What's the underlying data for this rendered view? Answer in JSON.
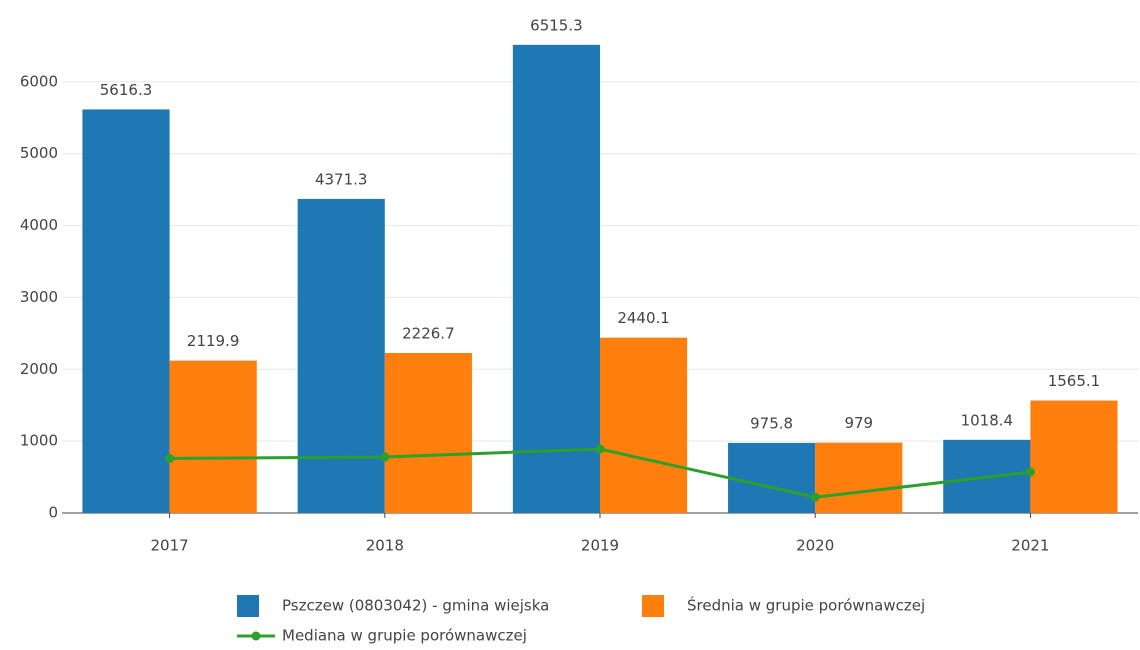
{
  "chart_data": {
    "type": "bar",
    "categories": [
      "2017",
      "2018",
      "2019",
      "2020",
      "2021"
    ],
    "series": [
      {
        "name": "Pszczew (0803042) - gmina wiejska",
        "color": "#1f77b4",
        "type": "bar",
        "values": [
          5616.3,
          4371.3,
          6515.3,
          975.8,
          1018.4
        ]
      },
      {
        "name": "Średnia w grupie porównawczej",
        "color": "#ff7f0e",
        "type": "bar",
        "values": [
          2119.9,
          2226.7,
          2440.1,
          979,
          1565.1
        ]
      },
      {
        "name": "Mediana w grupie porównawczej",
        "color": "#2ca02c",
        "type": "line",
        "values": [
          760,
          780,
          890,
          220,
          570
        ]
      }
    ],
    "ylim": [
      0,
      7000
    ],
    "yticks": [
      0,
      1000,
      2000,
      3000,
      4000,
      5000,
      6000
    ],
    "grid": true
  }
}
